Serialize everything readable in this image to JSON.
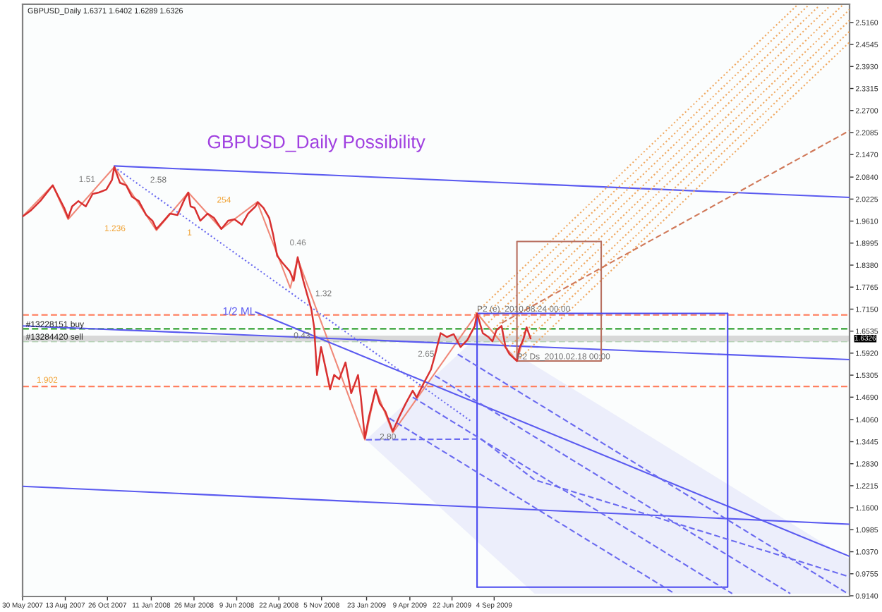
{
  "chart_data": {
    "type": "line",
    "title": "GBPUSD_Daily Possibility",
    "subtitle": "GBPUSD_Daily 1.6371 1.6402 1.6289 1.6326",
    "xlim": [
      "2007-05-30",
      "2011-05-21"
    ],
    "xticks": [
      {
        "value": "2007-05-30",
        "label": "30 May 2007"
      },
      {
        "value": "2007-08-13",
        "label": "13 Aug 2007"
      },
      {
        "value": "2007-10-26",
        "label": "26 Oct 2007"
      },
      {
        "value": "2008-01-11",
        "label": "11 Jan 2008"
      },
      {
        "value": "2008-03-26",
        "label": "26 Mar 2008"
      },
      {
        "value": "2008-06-09",
        "label": "9 Jun 2008"
      },
      {
        "value": "2008-08-22",
        "label": "22 Aug 2008"
      },
      {
        "value": "2008-11-05",
        "label": "5 Nov 2008"
      },
      {
        "value": "2009-01-23",
        "label": "23 Jan 2009"
      },
      {
        "value": "2009-04-09",
        "label": "9 Apr 2009"
      },
      {
        "value": "2009-06-22",
        "label": "22 Jun 2009"
      },
      {
        "value": "2009-09-04",
        "label": "4 Sep 2009"
      }
    ],
    "ylim": [
      0.912,
      2.567
    ],
    "yticks": [
      {
        "value": 2.516,
        "label": "2.5160"
      },
      {
        "value": 2.4545,
        "label": "2.4545"
      },
      {
        "value": 2.393,
        "label": "2.3930"
      },
      {
        "value": 2.3315,
        "label": "2.3315"
      },
      {
        "value": 2.27,
        "label": "2.2700"
      },
      {
        "value": 2.2085,
        "label": "2.2085"
      },
      {
        "value": 2.147,
        "label": "2.1470"
      },
      {
        "value": 2.084,
        "label": "2.0840"
      },
      {
        "value": 2.0225,
        "label": "2.0225"
      },
      {
        "value": 1.961,
        "label": "1.9610"
      },
      {
        "value": 1.8995,
        "label": "1.8995"
      },
      {
        "value": 1.838,
        "label": "1.8380"
      },
      {
        "value": 1.7765,
        "label": "1.7765"
      },
      {
        "value": 1.715,
        "label": "1.7150"
      },
      {
        "value": 1.6535,
        "label": "1.6535"
      },
      {
        "value": 1.592,
        "label": "1.5920"
      },
      {
        "value": 1.5305,
        "label": "1.5305"
      },
      {
        "value": 1.469,
        "label": "1.4690"
      },
      {
        "value": 1.406,
        "label": "1.4060"
      },
      {
        "value": 1.3445,
        "label": "1.3445"
      },
      {
        "value": 1.283,
        "label": "1.2830"
      },
      {
        "value": 1.2215,
        "label": "1.2215"
      },
      {
        "value": 1.16,
        "label": "1.1600"
      },
      {
        "value": 1.0985,
        "label": "1.0985"
      },
      {
        "value": 1.037,
        "label": "1.0370"
      },
      {
        "value": 0.9755,
        "label": "0.9755"
      },
      {
        "value": 0.914,
        "label": "0.9140"
      }
    ],
    "series": [
      {
        "color": "#d83030",
        "x": [
          "2007-05-30",
          "2007-06-06",
          "2007-06-13",
          "2007-06-30",
          "2007-07-12",
          "2007-07-22",
          "2007-08-01",
          "2007-08-11",
          "2007-08-18",
          "2007-08-25",
          "2007-09-05",
          "2007-09-18",
          "2007-09-30",
          "2007-10-11",
          "2007-10-24",
          "2007-11-03",
          "2007-11-07",
          "2007-11-17",
          "2007-11-28",
          "2007-12-08",
          "2007-12-20",
          "2008-01-02",
          "2008-01-13",
          "2008-01-20",
          "2008-02-02",
          "2008-02-13",
          "2008-02-26",
          "2008-03-09",
          "2008-03-16",
          "2008-03-20",
          "2008-03-27",
          "2008-04-06",
          "2008-04-19",
          "2008-04-30",
          "2008-05-13",
          "2008-05-25",
          "2008-06-05",
          "2008-06-18",
          "2008-06-29",
          "2008-07-12",
          "2008-07-16",
          "2008-07-26",
          "2008-08-05",
          "2008-08-12",
          "2008-08-19",
          "2008-08-28",
          "2008-09-10",
          "2008-09-17",
          "2008-09-24",
          "2008-10-04",
          "2008-10-11",
          "2008-10-18",
          "2008-10-23",
          "2008-10-28",
          "2008-11-04",
          "2008-11-11",
          "2008-11-20",
          "2008-11-27",
          "2008-12-06",
          "2008-12-17",
          "2008-12-27",
          "2009-01-08",
          "2009-01-13",
          "2009-01-20",
          "2009-01-27",
          "2009-02-08",
          "2009-02-15",
          "2009-02-25",
          "2009-03-10",
          "2009-03-21",
          "2009-04-02",
          "2009-04-14",
          "2009-04-21",
          "2009-05-03",
          "2009-05-16",
          "2009-05-23",
          "2009-06-02",
          "2009-06-13",
          "2009-06-25",
          "2009-07-07",
          "2009-07-19",
          "2009-08-01",
          "2009-08-05",
          "2009-08-15",
          "2009-08-25",
          "2009-09-01",
          "2009-09-08",
          "2009-09-17",
          "2009-09-24",
          "2009-10-01",
          "2009-10-14",
          "2009-10-18",
          "2009-10-25",
          "2009-10-31",
          "2009-11-07"
        ],
        "values": [
          1.974,
          1.982,
          1.99,
          2.017,
          2.041,
          2.061,
          2.029,
          1.998,
          1.97,
          2.002,
          2.017,
          2.002,
          2.037,
          2.041,
          2.049,
          2.076,
          2.112,
          2.068,
          2.061,
          2.029,
          2.017,
          1.978,
          1.962,
          1.939,
          1.962,
          1.982,
          1.978,
          2.021,
          2.041,
          2.002,
          1.998,
          1.962,
          1.982,
          1.97,
          1.939,
          1.962,
          1.966,
          1.951,
          1.982,
          2.002,
          2.014,
          1.998,
          1.97,
          1.923,
          1.864,
          1.845,
          1.821,
          1.794,
          1.86,
          1.794,
          1.754,
          1.715,
          1.664,
          1.531,
          1.609,
          1.558,
          1.491,
          1.531,
          1.519,
          1.566,
          1.48,
          1.531,
          1.468,
          1.354,
          1.413,
          1.491,
          1.452,
          1.429,
          1.374,
          1.413,
          1.452,
          1.487,
          1.468,
          1.507,
          1.546,
          1.586,
          1.648,
          1.637,
          1.645,
          1.609,
          1.629,
          1.668,
          1.703,
          1.648,
          1.637,
          1.625,
          1.656,
          1.668,
          1.609,
          1.589,
          1.57,
          1.605,
          1.629,
          1.664,
          1.633
        ]
      },
      {
        "color": "#f08878",
        "x": [
          "2007-05-30",
          "2007-07-22",
          "2007-08-18",
          "2007-11-07",
          "2008-01-20",
          "2008-03-16",
          "2008-05-13",
          "2008-07-15",
          "2008-09-11",
          "2008-09-24",
          "2009-01-20",
          "2009-02-08",
          "2009-03-10",
          "2009-08-05",
          "2009-10-14",
          "2009-10-31"
        ],
        "values": [
          1.974,
          2.061,
          1.966,
          2.112,
          1.935,
          2.041,
          1.939,
          2.014,
          1.774,
          1.856,
          1.35,
          1.491,
          1.37,
          1.703,
          1.57,
          1.664
        ]
      },
      {
        "color": "#5a5af0",
        "x": [
          "2007-11-07",
          "2011-05-21"
        ],
        "values": [
          2.115,
          2.027
        ]
      },
      {
        "color": "#5a5af0",
        "x": [
          "2007-05-30",
          "2011-05-21"
        ],
        "values": [
          1.668,
          1.574
        ]
      },
      {
        "color": "#5a5af0",
        "x": [
          "2007-05-30",
          "2011-05-21"
        ],
        "values": [
          1.22,
          1.114
        ]
      },
      {
        "name": "1/2 ML",
        "color": "#5a5af0",
        "x": [
          "2008-07-12",
          "2011-05-21"
        ],
        "values": [
          1.707,
          1.024
        ]
      },
      {
        "color": "#6a6af0",
        "line_style": "dotted",
        "x": [
          "2007-11-07",
          "2009-07-26"
        ],
        "values": [
          2.112,
          1.401
        ]
      },
      {
        "color": "#f0a860",
        "line_style": "dotted",
        "x": [
          "2009-08-02",
          "2011-02-17"
        ],
        "values": [
          1.703,
          2.563
        ]
      },
      {
        "color": "#f0a860",
        "line_style": "dotted",
        "x": [
          "2009-08-12",
          "2011-03-09"
        ],
        "values": [
          1.687,
          2.563
        ]
      },
      {
        "color": "#f0a860",
        "line_style": "dotted",
        "x": [
          "2009-08-20",
          "2011-03-29"
        ],
        "values": [
          1.67,
          2.563
        ]
      },
      {
        "color": "#f0a860",
        "line_style": "dotted",
        "x": [
          "2009-08-30",
          "2011-04-17"
        ],
        "values": [
          1.653,
          2.563
        ]
      },
      {
        "color": "#f0a860",
        "line_style": "dotted",
        "x": [
          "2009-09-08",
          "2011-05-08"
        ],
        "values": [
          1.636,
          2.563
        ]
      },
      {
        "color": "#f0a860",
        "line_style": "dotted",
        "x": [
          "2009-09-16",
          "2011-05-21"
        ],
        "values": [
          1.62,
          2.552
        ]
      },
      {
        "color": "#f0a860",
        "line_style": "dotted",
        "x": [
          "2009-09-26",
          "2011-05-21"
        ],
        "values": [
          1.603,
          2.522
        ]
      },
      {
        "color": "#f0a860",
        "line_style": "dotted",
        "x": [
          "2009-10-04",
          "2011-05-21"
        ],
        "values": [
          1.587,
          2.491
        ]
      },
      {
        "color": "#f0a860",
        "line_style": "dotted",
        "x": [
          "2009-10-14",
          "2011-05-21"
        ],
        "values": [
          1.57,
          2.461
        ]
      },
      {
        "color": "#d07858",
        "line_style": "dashed",
        "x": [
          "2009-09-17",
          "2011-05-21"
        ],
        "values": [
          1.676,
          2.214
        ]
      },
      {
        "color": "#b87060",
        "x": [
          "2009-10-14",
          "2010-03-11",
          "2010-03-11"
        ],
        "values": [
          1.57,
          1.57,
          1.904
        ]
      },
      {
        "color": "#b87060",
        "x": [
          "2010-03-11",
          "2009-10-14",
          "2009-10-14"
        ],
        "values": [
          1.904,
          1.904,
          1.57
        ]
      },
      {
        "color": "#4a4af0",
        "x": [
          "2009-08-05",
          "2010-10-19",
          "2010-10-19"
        ],
        "values": [
          0.938,
          0.938,
          1.703
        ]
      },
      {
        "color": "#4a4af0",
        "x": [
          "2010-10-19",
          "2009-08-05",
          "2009-08-05"
        ],
        "values": [
          1.703,
          1.703,
          0.938
        ]
      },
      {
        "color": "#6a6af0",
        "line_style": "dashed",
        "x": [
          "2009-01-22",
          "2009-08-12",
          "2009-11-14",
          "2011-05-21"
        ],
        "values": [
          1.35,
          1.352,
          1.238,
          0.967
        ],
        "lower": [
          1.35,
          1.056,
          0.92,
          0.92
        ],
        "upper": [
          1.35,
          1.648,
          1.558,
          1.016
        ]
      },
      {
        "color": "#6a6af0",
        "line_style": "dashed",
        "x": [
          "2009-03-04",
          "2010-07-18"
        ],
        "values": [
          1.41,
          0.92
        ]
      },
      {
        "color": "#6a6af0",
        "line_style": "dashed",
        "x": [
          "2009-04-14",
          "2010-10-27"
        ],
        "values": [
          1.469,
          0.92
        ]
      },
      {
        "color": "#6a6af0",
        "line_style": "dashed",
        "x": [
          "2009-05-23",
          "2011-02-06"
        ],
        "values": [
          1.529,
          0.92
        ]
      },
      {
        "color": "#6a6af0",
        "line_style": "dashed",
        "x": [
          "2009-07-02",
          "2011-05-18"
        ],
        "values": [
          1.589,
          0.92
        ]
      }
    ],
    "ref_lines": [
      {
        "axis": "y",
        "value": 1.699,
        "color": "#ff8060",
        "line_style": "dashed"
      },
      {
        "axis": "y",
        "value": 1.66,
        "color": "#30a030",
        "line_style": "dashed",
        "label": "#13228151 buy"
      },
      {
        "axis": "y",
        "value": 1.625,
        "color": "#90c890",
        "line_style": "dashed",
        "label": "#13284420 sell"
      },
      {
        "axis": "y",
        "value": 1.499,
        "color": "#ff8060",
        "line_style": "dashed"
      },
      {
        "axis": "y",
        "value": 1.6326,
        "color": "#d8d8d8",
        "line_style": "solid",
        "label": "1.6326"
      }
    ],
    "annotations": [
      "1.51",
      "1.236",
      "1",
      "254",
      "0.46",
      "2.65",
      "1.902",
      {
        "text": "2.58",
        "x": "2008-01-09",
        "y": 2.064
      },
      {
        "text": "1.32",
        "x": "2008-10-25",
        "y": 1.746
      },
      {
        "text": "0.43",
        "x": "2008-09-17",
        "y": 1.629
      },
      {
        "text": "2.80",
        "x": "2009-02-15",
        "y": 1.346
      },
      {
        "text": "P2 (e)_2010.08.24 00:00",
        "x": "2009-08-05",
        "y": 1.703
      },
      {
        "text": "P2 Ds_2010.02.18 00:00",
        "x": "2009-10-14",
        "y": 1.57
      }
    ]
  }
}
